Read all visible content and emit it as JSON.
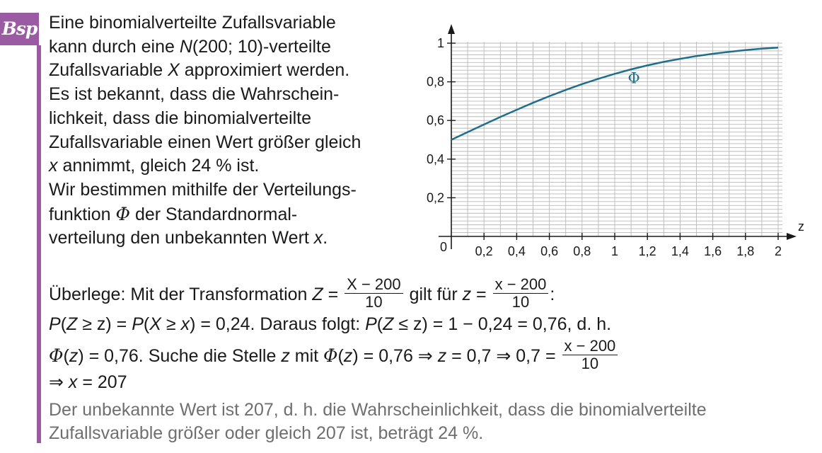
{
  "badge": "Bsp",
  "intro_lines": [
    [
      "Eine binomialverteilte Zufallsvariable"
    ],
    [
      "kann durch eine ",
      {
        "i": "N"
      },
      "(200; 10)-verteilte"
    ],
    [
      "Zufallsvariable ",
      {
        "i": "X"
      },
      " approximiert werden."
    ],
    [
      "Es ist bekannt, dass die Wahrschein-"
    ],
    [
      "lichkeit, dass die binomialverteilte"
    ],
    [
      "Zufallsvariable einen Wert größer gleich"
    ],
    [
      {
        "i": "x"
      },
      " annimmt, gleich 24 % ist."
    ],
    [
      "Wir bestimmen mithilfe der Verteilungs-"
    ],
    [
      "funktion ",
      {
        "phi": "Φ"
      },
      " der Standardnormal-"
    ],
    [
      "verteilung den unbekannten Wert ",
      {
        "i": "x"
      },
      "."
    ]
  ],
  "steps": {
    "s1_a": "Überlege:  Mit der Transformation  ",
    "s1_Z": "Z",
    "s1_eq": " = ",
    "s1_frac1_num": "X − 200",
    "s1_frac1_den": "10",
    "s1_b": "  gilt für  ",
    "s1_z": "z",
    "s1_frac2_num": "x − 200",
    "s1_frac2_den": "10",
    "s1_colon": ":",
    "s2": [
      {
        "i": "P"
      },
      "(",
      {
        "i": "Z"
      },
      " ≥ z) = ",
      {
        "i": "P"
      },
      "(",
      {
        "i": "X"
      },
      " ≥ ",
      {
        "i": "x"
      },
      ") = 0,24. Daraus folgt:  ",
      {
        "i": "P"
      },
      "(",
      {
        "i": "Z"
      },
      " ≤ z) = 1 − 0,24 = 0,76, d. h."
    ],
    "s3_a": [
      {
        "phi": "Φ"
      },
      "(",
      {
        "i": "z"
      },
      ") = 0,76. Suche die Stelle ",
      {
        "i": "z"
      },
      " mit  ",
      {
        "phi": "Φ"
      },
      "(",
      {
        "i": "z"
      },
      ") = 0,76  ⇒  ",
      {
        "i": "z"
      },
      " = 0,7  ⇒  0,7 = "
    ],
    "s3_frac_num": "x − 200",
    "s3_frac_den": "10",
    "s4": [
      "⇒  ",
      {
        "i": "x"
      },
      " = 207"
    ],
    "result_1": "Der unbekannte Wert ist 207, d. h. die Wahrscheinlichkeit, dass die binomialverteilte",
    "result_2": "Zufallsvariable größer oder gleich 207 ist, beträgt 24 %."
  },
  "chart_data": {
    "type": "line",
    "function": "Φ(z)",
    "curve_label": "Φ",
    "x_axis_label": "z",
    "origin_label": "0",
    "x_ticks": [
      "0,2",
      "0,4",
      "0,6",
      "0,8",
      "1",
      "1,2",
      "1,4",
      "1,6",
      "1,8",
      "2"
    ],
    "y_ticks": [
      "0,2",
      "0,4",
      "0,6",
      "0,8",
      "1"
    ],
    "xlim": [
      0,
      2
    ],
    "ylim": [
      0,
      1
    ],
    "grid": true,
    "curve_color": "#1f6e8c",
    "points": [
      {
        "z": 0,
        "y": 0.5
      },
      {
        "z": 0.1,
        "y": 0.5398
      },
      {
        "z": 0.2,
        "y": 0.5793
      },
      {
        "z": 0.3,
        "y": 0.6179
      },
      {
        "z": 0.4,
        "y": 0.6554
      },
      {
        "z": 0.5,
        "y": 0.6915
      },
      {
        "z": 0.6,
        "y": 0.7257
      },
      {
        "z": 0.7,
        "y": 0.758
      },
      {
        "z": 0.8,
        "y": 0.7881
      },
      {
        "z": 0.9,
        "y": 0.8159
      },
      {
        "z": 1.0,
        "y": 0.8413
      },
      {
        "z": 1.1,
        "y": 0.8643
      },
      {
        "z": 1.2,
        "y": 0.8849
      },
      {
        "z": 1.3,
        "y": 0.9032
      },
      {
        "z": 1.4,
        "y": 0.9192
      },
      {
        "z": 1.5,
        "y": 0.9332
      },
      {
        "z": 1.6,
        "y": 0.9452
      },
      {
        "z": 1.7,
        "y": 0.9554
      },
      {
        "z": 1.8,
        "y": 0.9641
      },
      {
        "z": 1.9,
        "y": 0.9713
      },
      {
        "z": 2.0,
        "y": 0.9772
      }
    ]
  },
  "colors": {
    "accent": "#9b5ba3",
    "curve": "#1f6e8c",
    "result_text": "#6f6f6f"
  }
}
